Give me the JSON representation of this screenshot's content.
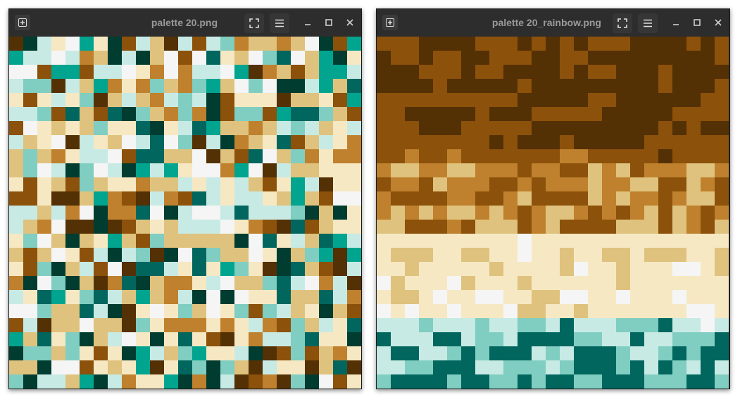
{
  "windows": [
    {
      "title": "palette 20.png",
      "buttons": {
        "new": "new-tab",
        "fullscreen": "fullscreen",
        "menu": "menu",
        "minimize": "minimize",
        "maximize": "maximize",
        "close": "close"
      }
    },
    {
      "title": "palette 20_rainbow.png",
      "buttons": {
        "new": "new-tab",
        "fullscreen": "fullscreen",
        "menu": "menu",
        "minimize": "minimize",
        "maximize": "maximize",
        "close": "close"
      }
    }
  ],
  "palette": {
    "a": "#543005",
    "b": "#8c510a",
    "c": "#bf812d",
    "d": "#dfc27d",
    "e": "#f6e8c3",
    "f": "#f5f5f5",
    "g": "#c7eae5",
    "h": "#80cdc1",
    "i": "#35978f",
    "j": "#01665e",
    "k": "#003c30",
    "l": "#5ab4ac",
    "m": "#d8b365",
    "n": "#01a48f"
  },
  "images": {
    "random_grid_size": 25,
    "rainbow_rows": [
      "bbbaaaabbbabababbbaaaabab",
      "abbabbaabbbaabbaaaaaaaaab",
      "aaabbbabbaaaababbaaabaaaa",
      "aaaabaaaaabaaaaaaaaabaaab",
      "bbbbbbbbbbaaaaabbaaaaaabb",
      "bbaaaaabaaabbbbbaaaaabbbb",
      "bbbaaabbbbbaaaaaaaaababaa",
      "bbbbbbbbabaaabaaaaabbbbbb",
      "bbcbbcbbbbbbbccbbbbbabbbb",
      "cddccddcccbccbbdcdbcccddc",
      "bccbdcccbbcbcccdccddbbdcb",
      "cbbbbccbbcdbbbbdcdccbcddb",
      "cdcdcddcdcbcddcbcbcdbdcbc",
      "ddbbbcbdddbcdbbbbdddbdcbd",
      "eeeeeeeeeefeeeeeeeeeeeeee",
      "edddeeddeefeedeeddedddeed",
      "eedeeeeedeeeedfeedeeeffed",
      "fdeeefdeeedeeeeeedeeeeeee",
      "eddefeeffeeddffeefeeefeee",
      "fefeefeeefddeedeeeeeeeffe",
      "ggghggghgghhgjggghhhjggfg",
      "jgggjjghhgjjjjhhggjgghhhj",
      "gjjgghjhjjjghgjjjhgghjhjj",
      "gghhjjjgghhhghjjjhjgjhgjg",
      "hjjjjhjjhhjhjjhhjjjhhhjjh"
    ]
  }
}
